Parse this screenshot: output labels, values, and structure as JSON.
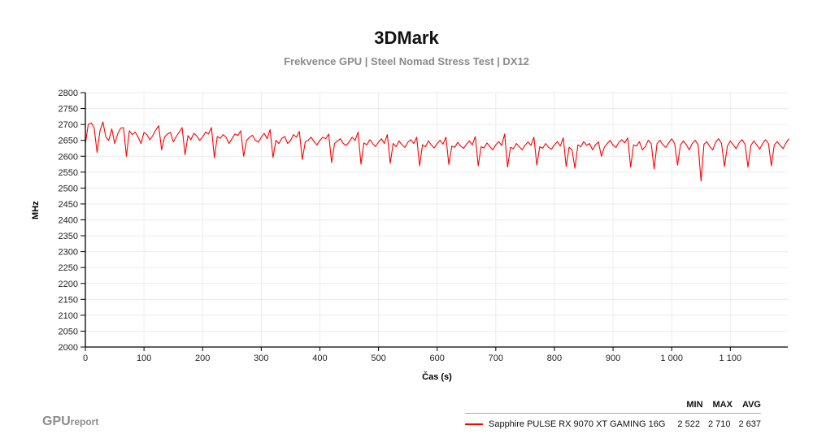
{
  "header": {
    "title": "3DMark",
    "subtitle": "Frekvence GPU | Steel Nomad Stress Test | DX12"
  },
  "branding": {
    "logo_main": "GPU",
    "logo_sub": "report"
  },
  "legend": {
    "columns": [
      "MIN",
      "MAX",
      "AVG"
    ],
    "series": [
      {
        "name": "Sapphire PULSE RX 9070 XT GAMING 16G",
        "color": "#ff0000",
        "min": "2 522",
        "max": "2 710",
        "avg": "2 637"
      }
    ]
  },
  "chart_data": {
    "type": "line",
    "title": "3DMark",
    "subtitle": "Frekvence GPU | Steel Nomad Stress Test | DX12",
    "xlabel": "Čas (s)",
    "ylabel": "MHz",
    "xlim": [
      0,
      1198
    ],
    "ylim": [
      2000,
      2800
    ],
    "x_ticks": [
      0,
      100,
      200,
      300,
      400,
      500,
      600,
      700,
      800,
      900,
      1000,
      1100
    ],
    "x_tick_labels": [
      "0",
      "100",
      "200",
      "300",
      "400",
      "500",
      "600",
      "700",
      "800",
      "900",
      "1 000",
      "1 100"
    ],
    "y_ticks": [
      2000,
      2050,
      2100,
      2150,
      2200,
      2250,
      2300,
      2350,
      2400,
      2450,
      2500,
      2550,
      2600,
      2650,
      2700,
      2750,
      2800
    ],
    "grid": true,
    "legend_position": "bottom-right",
    "series": [
      {
        "name": "Sapphire PULSE RX 9070 XT GAMING 16G",
        "color": "#ff0000",
        "min": 2522,
        "max": 2710,
        "avg": 2637,
        "x_step": 5,
        "values": [
          2640,
          2700,
          2705,
          2690,
          2612,
          2680,
          2708,
          2660,
          2650,
          2686,
          2640,
          2670,
          2688,
          2690,
          2600,
          2680,
          2668,
          2676,
          2660,
          2640,
          2675,
          2668,
          2652,
          2665,
          2682,
          2696,
          2620,
          2660,
          2670,
          2675,
          2645,
          2662,
          2676,
          2690,
          2605,
          2665,
          2652,
          2672,
          2664,
          2650,
          2660,
          2676,
          2670,
          2690,
          2595,
          2662,
          2656,
          2668,
          2660,
          2640,
          2655,
          2670,
          2665,
          2680,
          2600,
          2650,
          2660,
          2666,
          2650,
          2644,
          2660,
          2672,
          2655,
          2684,
          2596,
          2650,
          2640,
          2656,
          2662,
          2640,
          2650,
          2668,
          2660,
          2678,
          2590,
          2645,
          2650,
          2660,
          2646,
          2636,
          2650,
          2660,
          2655,
          2670,
          2580,
          2640,
          2648,
          2655,
          2640,
          2634,
          2645,
          2660,
          2650,
          2676,
          2575,
          2642,
          2636,
          2652,
          2640,
          2630,
          2645,
          2655,
          2640,
          2668,
          2578,
          2640,
          2630,
          2648,
          2636,
          2628,
          2644,
          2652,
          2640,
          2660,
          2570,
          2636,
          2630,
          2648,
          2636,
          2626,
          2640,
          2650,
          2638,
          2660,
          2574,
          2632,
          2628,
          2644,
          2632,
          2625,
          2638,
          2648,
          2636,
          2662,
          2570,
          2630,
          2626,
          2642,
          2630,
          2620,
          2636,
          2646,
          2634,
          2670,
          2566,
          2628,
          2624,
          2640,
          2630,
          2620,
          2635,
          2645,
          2634,
          2660,
          2572,
          2630,
          2625,
          2640,
          2628,
          2622,
          2636,
          2646,
          2632,
          2658,
          2568,
          2628,
          2620,
          2562,
          2636,
          2630,
          2646,
          2634,
          2640,
          2620,
          2636,
          2645,
          2600,
          2628,
          2640,
          2650,
          2634,
          2628,
          2644,
          2652,
          2642,
          2658,
          2566,
          2636,
          2632,
          2646,
          2620,
          2630,
          2650,
          2640,
          2560,
          2640,
          2650,
          2636,
          2628,
          2642,
          2655,
          2640,
          2572,
          2636,
          2648,
          2636,
          2620,
          2640,
          2650,
          2636,
          2522,
          2638,
          2646,
          2630,
          2620,
          2644,
          2655,
          2640,
          2568,
          2632,
          2648,
          2636,
          2624,
          2642,
          2652,
          2638,
          2566,
          2634,
          2648,
          2636,
          2622,
          2640,
          2652,
          2640,
          2570,
          2636,
          2646,
          2634,
          2624,
          2642,
          2655
        ]
      }
    ]
  }
}
